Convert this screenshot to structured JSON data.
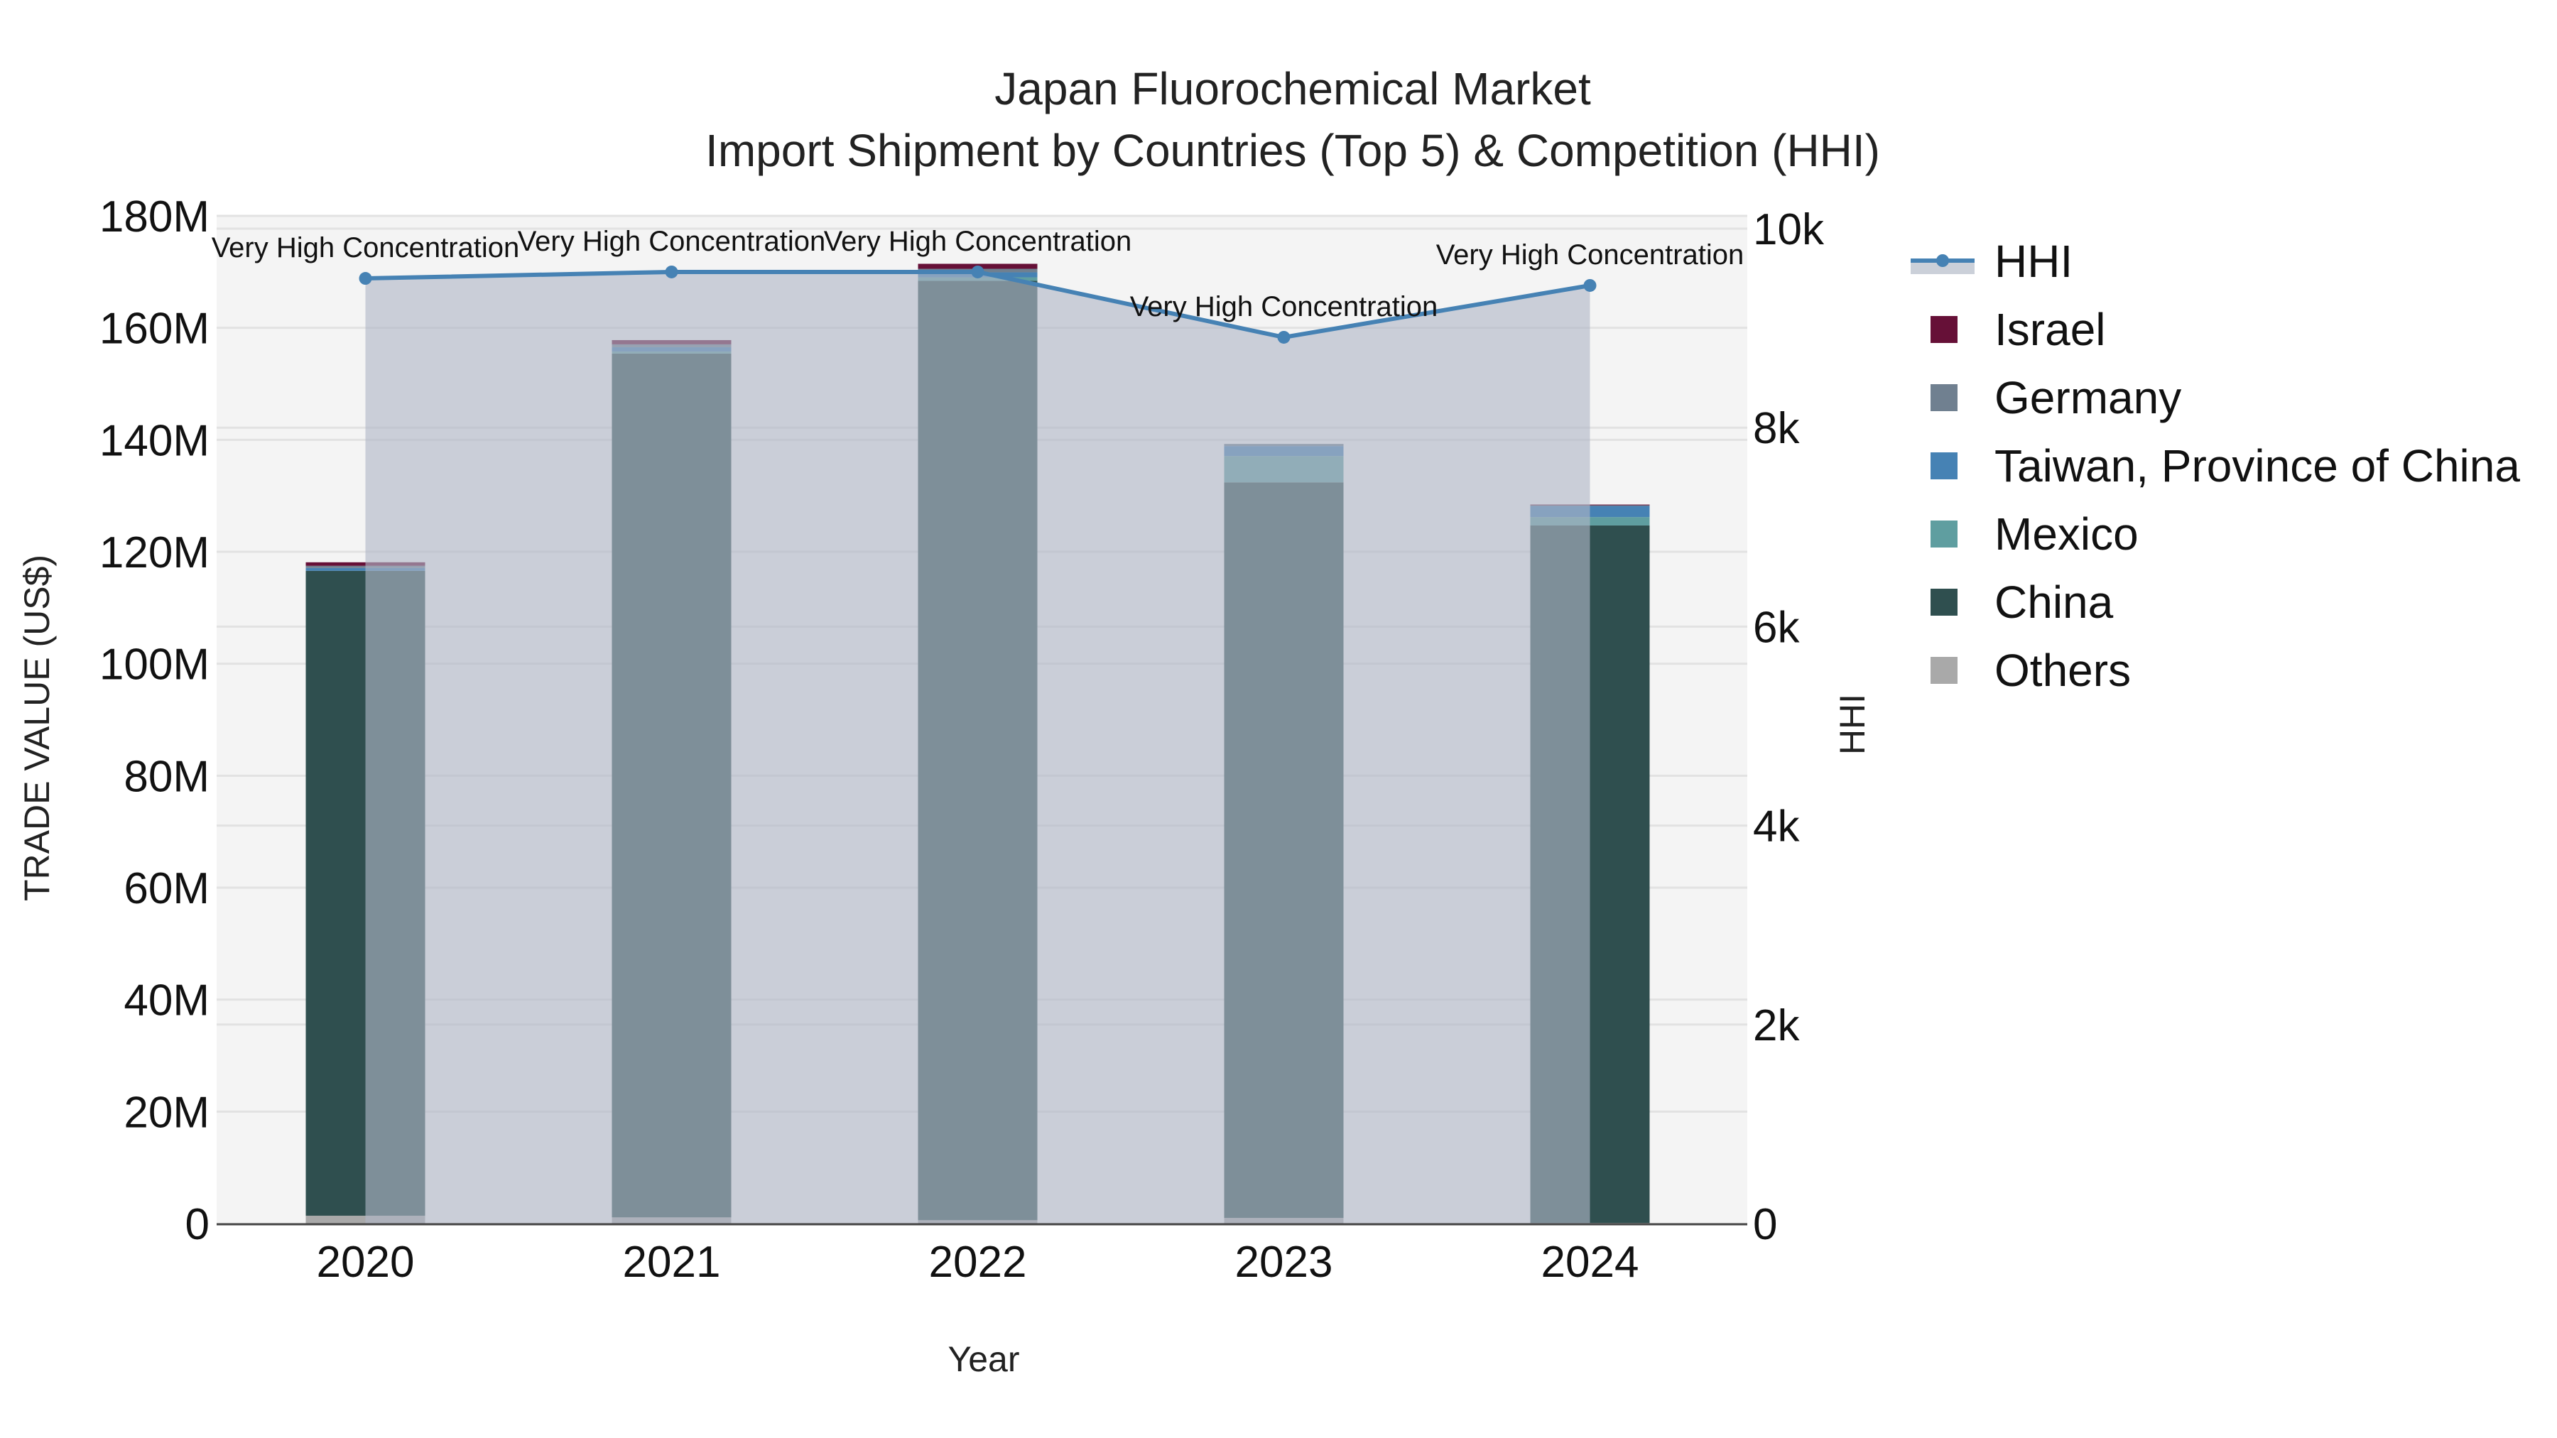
{
  "chart_data": {
    "type": "bar",
    "title": "Japan Fluorochemical Market",
    "subtitle": "Import Shipment by Countries (Top 5) & Competition (HHI)",
    "xlabel": "Year",
    "ylabel": "TRADE VALUE (US$)",
    "y2label": "HHI",
    "categories": [
      "2020",
      "2021",
      "2022",
      "2023",
      "2024"
    ],
    "ylim": [
      0,
      180000000
    ],
    "y2lim": [
      0,
      10000
    ],
    "y_ticks": [
      "0",
      "20M",
      "40M",
      "60M",
      "80M",
      "100M",
      "120M",
      "140M",
      "160M",
      "180M"
    ],
    "y2_ticks": [
      "0",
      "2k",
      "4k",
      "6k",
      "8k",
      "10k"
    ],
    "barmode": "stack",
    "series": [
      {
        "name": "Others",
        "color": "#A9A9A9",
        "values": [
          1400000,
          1100000,
          600000,
          1000000,
          100000
        ]
      },
      {
        "name": "China",
        "color": "#2F4F4F",
        "values": [
          115200000,
          154300000,
          167800000,
          131400000,
          124600000
        ]
      },
      {
        "name": "Mexico",
        "color": "#5F9EA0",
        "values": [
          0,
          380000,
          630000,
          4700000,
          1500000
        ]
      },
      {
        "name": "Taiwan, Province of China",
        "color": "#4682B4",
        "values": [
          510000,
          760000,
          890000,
          1780000,
          2000000
        ]
      },
      {
        "name": "Germany",
        "color": "#708090",
        "values": [
          380000,
          510000,
          630000,
          380000,
          100000
        ]
      },
      {
        "name": "Israel",
        "color": "#661037",
        "values": [
          630000,
          760000,
          890000,
          0,
          130000
        ]
      }
    ],
    "line_series": {
      "name": "HHI",
      "axis": "y2",
      "color": "#4682B4",
      "fill_color": "#B0B7C6",
      "values": [
        9500,
        9565,
        9565,
        8908,
        9429
      ],
      "annotations": [
        "Very High Concentration",
        "Very High Concentration",
        "Very High Concentration",
        "Very High Concentration",
        "Very High Concentration"
      ]
    },
    "grid": true,
    "legend_position": "right",
    "legend_order": [
      "HHI",
      "Israel",
      "Germany",
      "Taiwan, Province of China",
      "Mexico",
      "China",
      "Others"
    ]
  },
  "labels": {
    "title": "Japan Fluorochemical Market",
    "subtitle": "Import Shipment by Countries (Top 5) & Competition (HHI)",
    "xlabel": "Year",
    "ylabel": "TRADE VALUE (US$)",
    "y2label": "HHI"
  },
  "legend": [
    {
      "label": "HHI",
      "color": "#4682B4",
      "kind": "line"
    },
    {
      "label": "Israel",
      "color": "#661037",
      "kind": "box"
    },
    {
      "label": "Germany",
      "color": "#708090",
      "kind": "box"
    },
    {
      "label": "Taiwan, Province of China",
      "color": "#4682B4",
      "kind": "box"
    },
    {
      "label": "Mexico",
      "color": "#5F9EA0",
      "kind": "box"
    },
    {
      "label": "China",
      "color": "#2F4F4F",
      "kind": "box"
    },
    {
      "label": "Others",
      "color": "#A9A9A9",
      "kind": "box"
    }
  ]
}
